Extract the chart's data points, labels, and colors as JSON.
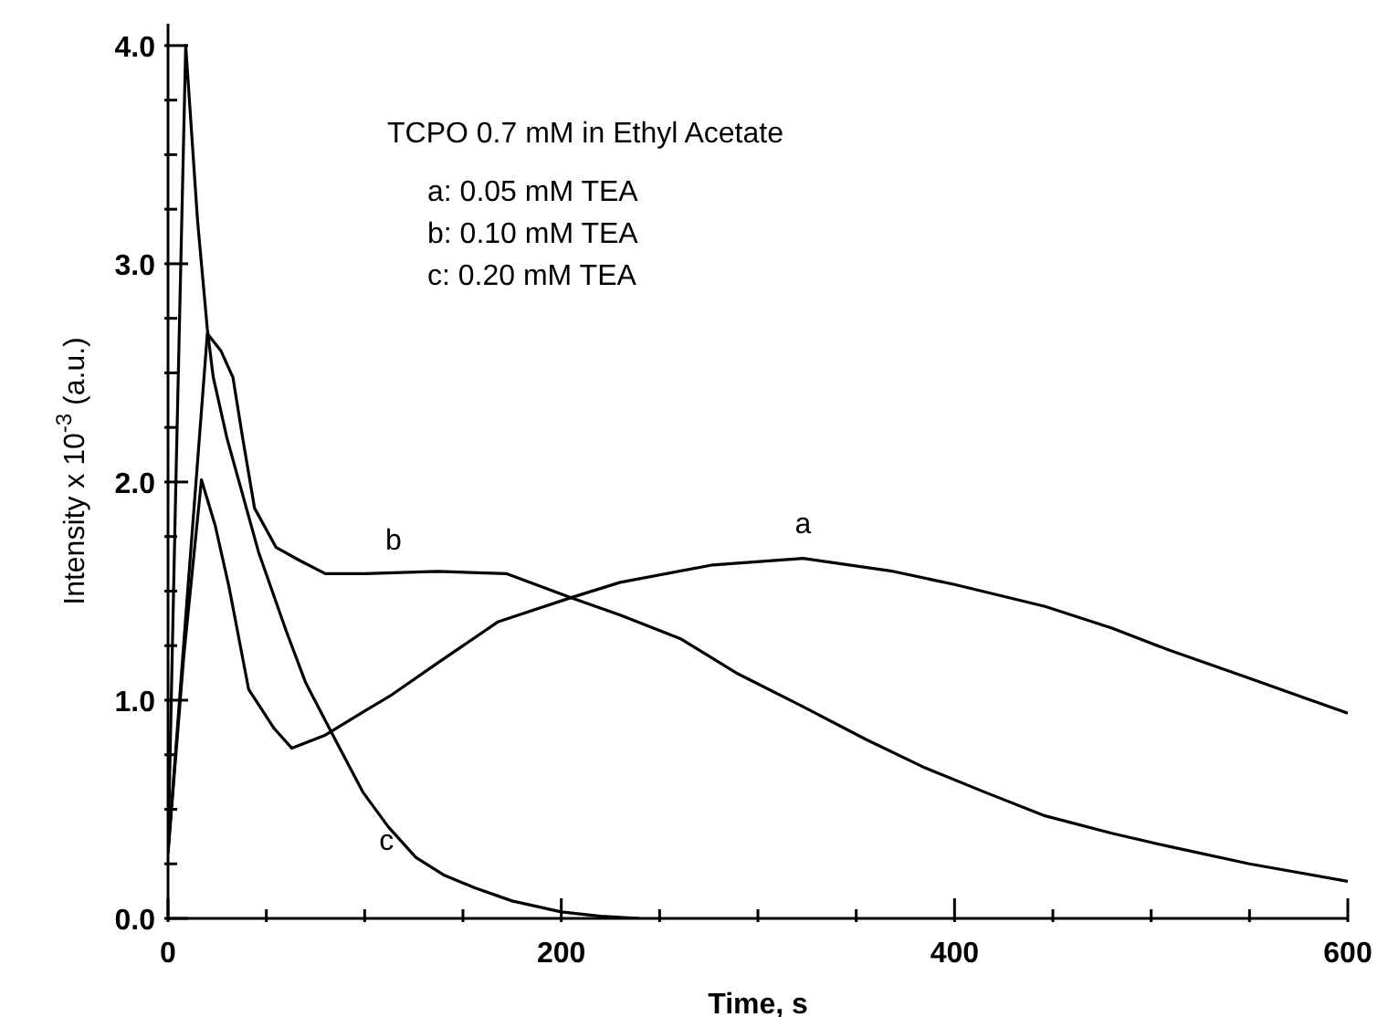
{
  "chart_data": {
    "type": "line",
    "xlabel": "Time, s",
    "ylabel": "Intensity x 10$^{-3}$ (a.u.)",
    "xlim": [
      0,
      600
    ],
    "ylim": [
      0,
      4.1
    ],
    "xticks": [
      0,
      {
        "value": 50,
        "label": null
      },
      {
        "value": 100,
        "label": null
      },
      {
        "value": 150,
        "label": null
      },
      200,
      {
        "value": 250,
        "label": null
      },
      {
        "value": 300,
        "label": null
      },
      {
        "value": 350,
        "label": null
      },
      400,
      {
        "value": 450,
        "label": null
      },
      {
        "value": 500,
        "label": null
      },
      {
        "value": 550,
        "label": null
      },
      600
    ],
    "yticks": [
      {
        "value": 0,
        "label": "0.0"
      },
      {
        "value": 0.25,
        "label": null
      },
      {
        "value": 0.5,
        "label": null
      },
      {
        "value": 0.75,
        "label": null
      },
      {
        "value": 1,
        "label": "1.0"
      },
      {
        "value": 1.25,
        "label": null
      },
      {
        "value": 1.5,
        "label": null
      },
      {
        "value": 1.75,
        "label": null
      },
      {
        "value": 2,
        "label": "2.0"
      },
      {
        "value": 2.25,
        "label": null
      },
      {
        "value": 2.5,
        "label": null
      },
      {
        "value": 2.75,
        "label": null
      },
      {
        "value": 3,
        "label": "3.0"
      },
      {
        "value": 3.25,
        "label": null
      },
      {
        "value": 3.5,
        "label": null
      },
      {
        "value": 3.75,
        "label": null
      },
      {
        "value": 4,
        "label": "4.0"
      }
    ],
    "grid": false,
    "legend": false,
    "marker": "none",
    "line_style": "solid",
    "series": [
      {
        "name": "a",
        "color": "#000000",
        "x": [
          0,
          8,
          17,
          24,
          31,
          41,
          54,
          63,
          80,
          100,
          113,
          137,
          168,
          205,
          230,
          277,
          323,
          369,
          400,
          446,
          480,
          509,
          550,
          600
        ],
        "values": [
          0.3,
          1.2,
          2.01,
          1.8,
          1.52,
          1.05,
          0.87,
          0.78,
          0.84,
          0.95,
          1.02,
          1.17,
          1.36,
          1.47,
          1.54,
          1.62,
          1.65,
          1.59,
          1.53,
          1.43,
          1.33,
          1.23,
          1.1,
          0.94
        ]
      },
      {
        "name": "b",
        "color": "#000000",
        "x": [
          0,
          10,
          20,
          27,
          33,
          38,
          44,
          55,
          67,
          80,
          100,
          137,
          172,
          205,
          230,
          261,
          290,
          323,
          355,
          385,
          415,
          446,
          480,
          509,
          550,
          600
        ],
        "values": [
          0.3,
          1.5,
          2.68,
          2.6,
          2.48,
          2.2,
          1.88,
          1.7,
          1.64,
          1.58,
          1.58,
          1.59,
          1.58,
          1.47,
          1.39,
          1.28,
          1.12,
          0.97,
          0.82,
          0.69,
          0.58,
          0.47,
          0.39,
          0.33,
          0.25,
          0.17
        ]
      },
      {
        "name": "c",
        "color": "#000000",
        "x": [
          0,
          4,
          9,
          15,
          20,
          23,
          30,
          46,
          60,
          70,
          85,
          99,
          112,
          126,
          140,
          156,
          175,
          200,
          220,
          240
        ],
        "values": [
          0.3,
          2.0,
          4.0,
          3.2,
          2.7,
          2.48,
          2.2,
          1.68,
          1.32,
          1.08,
          0.82,
          0.58,
          0.42,
          0.28,
          0.2,
          0.14,
          0.08,
          0.03,
          0.01,
          0
        ]
      }
    ],
    "annotations": [
      "TCPO 0.7 mM in Ethyl Acetate",
      "a: 0.05 mM TEA",
      "b: 0.10 mM TEA",
      "c: 0.20 mM TEA"
    ]
  }
}
